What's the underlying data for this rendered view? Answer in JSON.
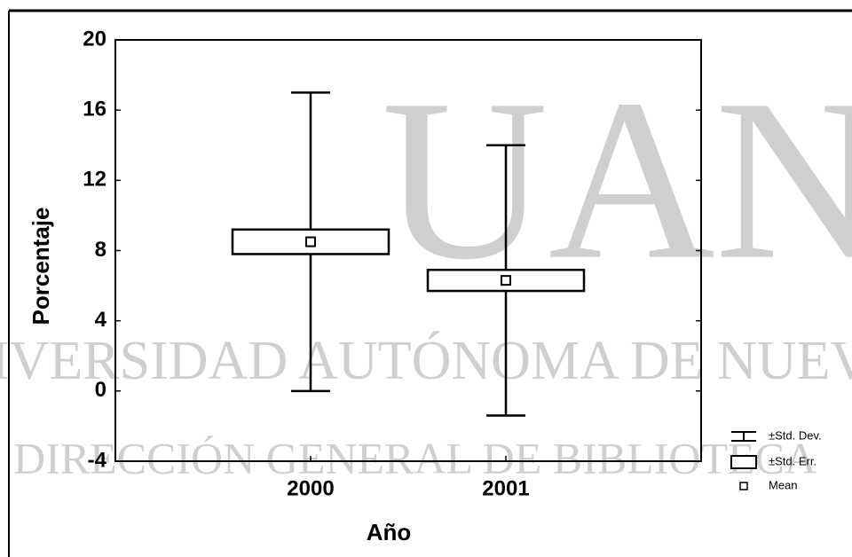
{
  "chart_data": {
    "type": "box",
    "xlabel": "Año",
    "ylabel": "Porcentaje",
    "categories": [
      "2000",
      "2001"
    ],
    "mean": [
      8.5,
      6.3
    ],
    "se": [
      0.7,
      0.6
    ],
    "sd": [
      8.5,
      7.7
    ],
    "legend": [
      "±Std. Dev.",
      "±Std. Err.",
      "Mean"
    ],
    "ylim": [
      -4,
      20
    ],
    "yticks": [
      -4,
      0,
      4,
      8,
      12,
      16,
      20
    ],
    "grid": false,
    "legend_position": "right",
    "color": "#000000"
  },
  "watermark": [
    "UAN",
    "IVERSIDAD AUTÓNOMA DE NUEVO",
    "DIRECCIÓN GENERAL DE BIBLIOTECA"
  ]
}
